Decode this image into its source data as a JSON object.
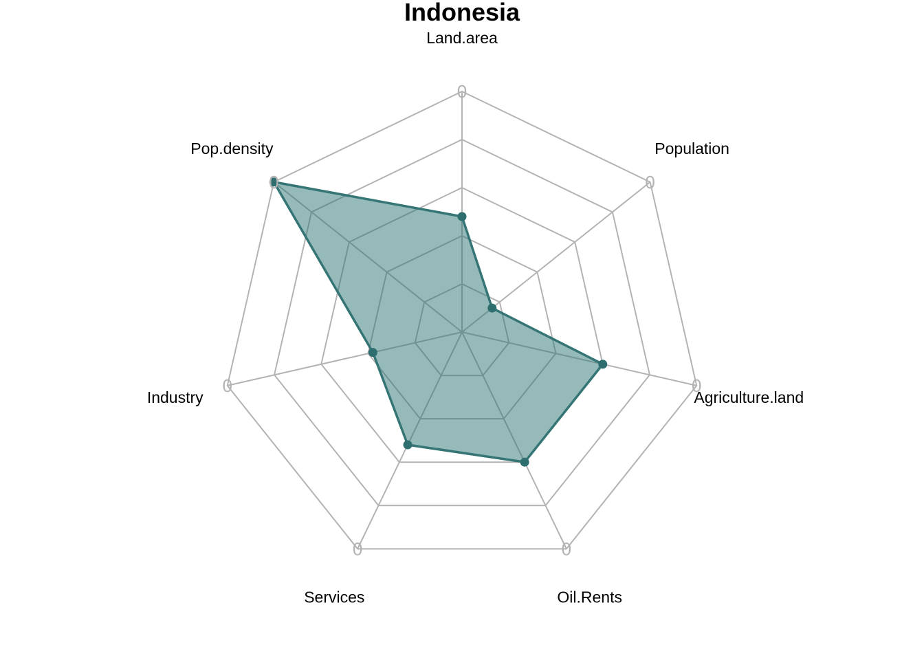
{
  "chart_data": {
    "type": "radar",
    "title": "Indonesia",
    "axes": [
      "Land.area",
      "Population",
      "Agriculture.land",
      "Oil.Rents",
      "Services",
      "Industry",
      "Pop.density"
    ],
    "axis_tick_label": "0",
    "rmin": 0,
    "rmax": 5,
    "grid_levels": 5,
    "series": [
      {
        "values": [
          2.4,
          0.8,
          3.0,
          3.0,
          2.6,
          1.9,
          5.0
        ]
      }
    ],
    "colors": {
      "fill": "#2e7373",
      "fill_opacity": 0.5,
      "line": "#357575",
      "point": "#2f6e6e",
      "grid": "#b3b3b3"
    }
  }
}
